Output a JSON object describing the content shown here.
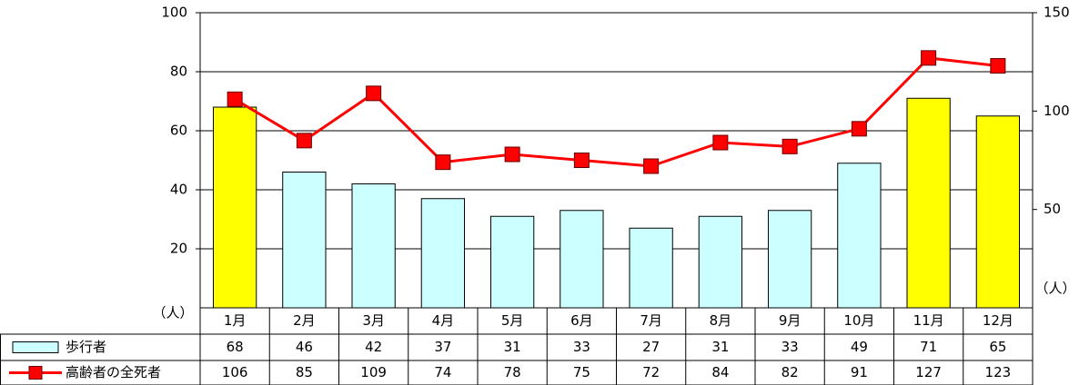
{
  "chart_data": {
    "type": "bar-line",
    "categories": [
      "1月",
      "2月",
      "3月",
      "4月",
      "5月",
      "6月",
      "7月",
      "8月",
      "9月",
      "10月",
      "11月",
      "12月"
    ],
    "series": [
      {
        "name": "歩行者",
        "type": "bar",
        "color": "#ccffff",
        "colors": [
          "#ffff00",
          "#ccffff",
          "#ccffff",
          "#ccffff",
          "#ccffff",
          "#ccffff",
          "#ccffff",
          "#ccffff",
          "#ccffff",
          "#ccffff",
          "#ffff00",
          "#ffff00"
        ],
        "values": [
          68,
          46,
          42,
          37,
          31,
          33,
          27,
          31,
          33,
          49,
          71,
          65
        ]
      },
      {
        "name": "高齢者の全死者",
        "type": "line",
        "color": "#ff0000",
        "axis": "y2",
        "values": [
          106,
          85,
          109,
          74,
          78,
          75,
          72,
          84,
          82,
          91,
          127,
          123
        ]
      }
    ],
    "ylabel": "（人）",
    "y2label": "（人）",
    "ylim": [
      0,
      100
    ],
    "yticks": [
      20,
      40,
      60,
      80,
      100
    ],
    "y2lim": [
      0,
      150
    ],
    "y2ticks": [
      50,
      100,
      150
    ],
    "grid": true
  }
}
